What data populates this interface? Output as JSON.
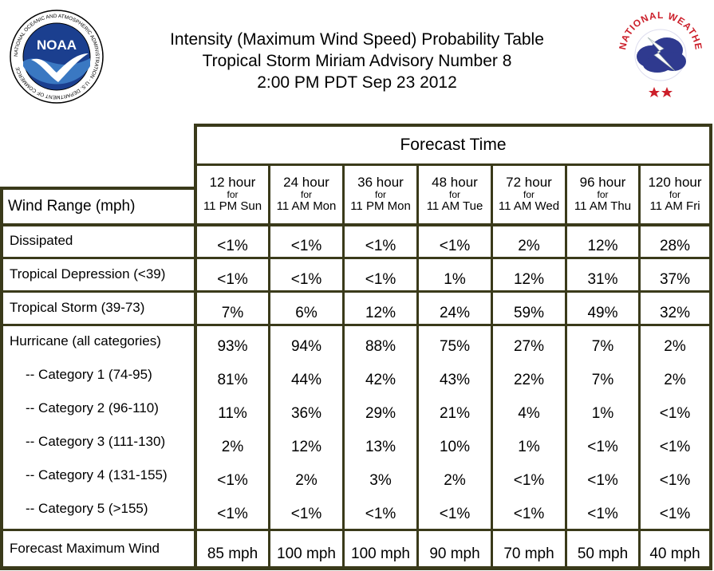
{
  "header": {
    "title_lines": [
      "Intensity (Maximum Wind Speed) Probability Table",
      "Tropical Storm Miriam Advisory Number 8",
      "2:00 PM PDT Sep 23 2012"
    ],
    "noaa_logo": {
      "name": "NOAA",
      "ring_text": "NATIONAL OCEANIC AND ATMOSPHERIC ADMINISTRATION · U.S. DEPARTMENT OF COMMERCE",
      "colors": {
        "sky": "#1b3f8f",
        "bird": "#ffffff",
        "sea": "#3a78c2"
      }
    },
    "nws_logo": {
      "ring_text": "NATIONAL WEATHER SERVICE",
      "colors": {
        "ring_text": "#cc1f2a",
        "cloud": "#2f3a8f",
        "bolt": "#ffffff",
        "stars": "#cc1f2a"
      }
    }
  },
  "table": {
    "forecast_time_label": "Forecast Time",
    "wind_range_label": "Wind Range (mph)",
    "for_label": "for",
    "columns": [
      {
        "hour": "12 hour",
        "day": "11 PM Sun"
      },
      {
        "hour": "24 hour",
        "day": "11 AM Mon"
      },
      {
        "hour": "36 hour",
        "day": "11 PM Mon"
      },
      {
        "hour": "48 hour",
        "day": "11 AM Tue"
      },
      {
        "hour": "72 hour",
        "day": "11 AM Wed"
      },
      {
        "hour": "96 hour",
        "day": "11 AM Thu"
      },
      {
        "hour": "120 hour",
        "day": "11 AM Fri"
      }
    ],
    "rows": [
      {
        "label": "Dissipated",
        "values": [
          "<1%",
          "<1%",
          "<1%",
          "<1%",
          "2%",
          "12%",
          "28%"
        ]
      },
      {
        "label": "Tropical Depression (<39)",
        "values": [
          "<1%",
          "<1%",
          "<1%",
          "1%",
          "12%",
          "31%",
          "37%"
        ]
      },
      {
        "label": "Tropical Storm (39-73)",
        "values": [
          "7%",
          "6%",
          "12%",
          "24%",
          "59%",
          "49%",
          "32%"
        ]
      },
      {
        "label": "Hurricane (all categories)",
        "values": [
          "93%",
          "94%",
          "88%",
          "75%",
          "27%",
          "7%",
          "2%"
        ]
      },
      {
        "label": "-- Category 1 (74-95)",
        "values": [
          "81%",
          "44%",
          "42%",
          "43%",
          "22%",
          "7%",
          "2%"
        ]
      },
      {
        "label": "-- Category 2 (96-110)",
        "values": [
          "11%",
          "36%",
          "29%",
          "21%",
          "4%",
          "1%",
          "<1%"
        ]
      },
      {
        "label": "-- Category 3 (111-130)",
        "values": [
          "2%",
          "12%",
          "13%",
          "10%",
          "1%",
          "<1%",
          "<1%"
        ]
      },
      {
        "label": "-- Category 4 (131-155)",
        "values": [
          "<1%",
          "2%",
          "3%",
          "2%",
          "<1%",
          "<1%",
          "<1%"
        ]
      },
      {
        "label": "-- Category 5 (>155)",
        "values": [
          "<1%",
          "<1%",
          "<1%",
          "<1%",
          "<1%",
          "<1%",
          "<1%"
        ]
      },
      {
        "label": "Forecast Maximum Wind",
        "values": [
          "85 mph",
          "100 mph",
          "100 mph",
          "90 mph",
          "70 mph",
          "50 mph",
          "40 mph"
        ]
      }
    ],
    "frame_color": "#3a3a1a"
  }
}
